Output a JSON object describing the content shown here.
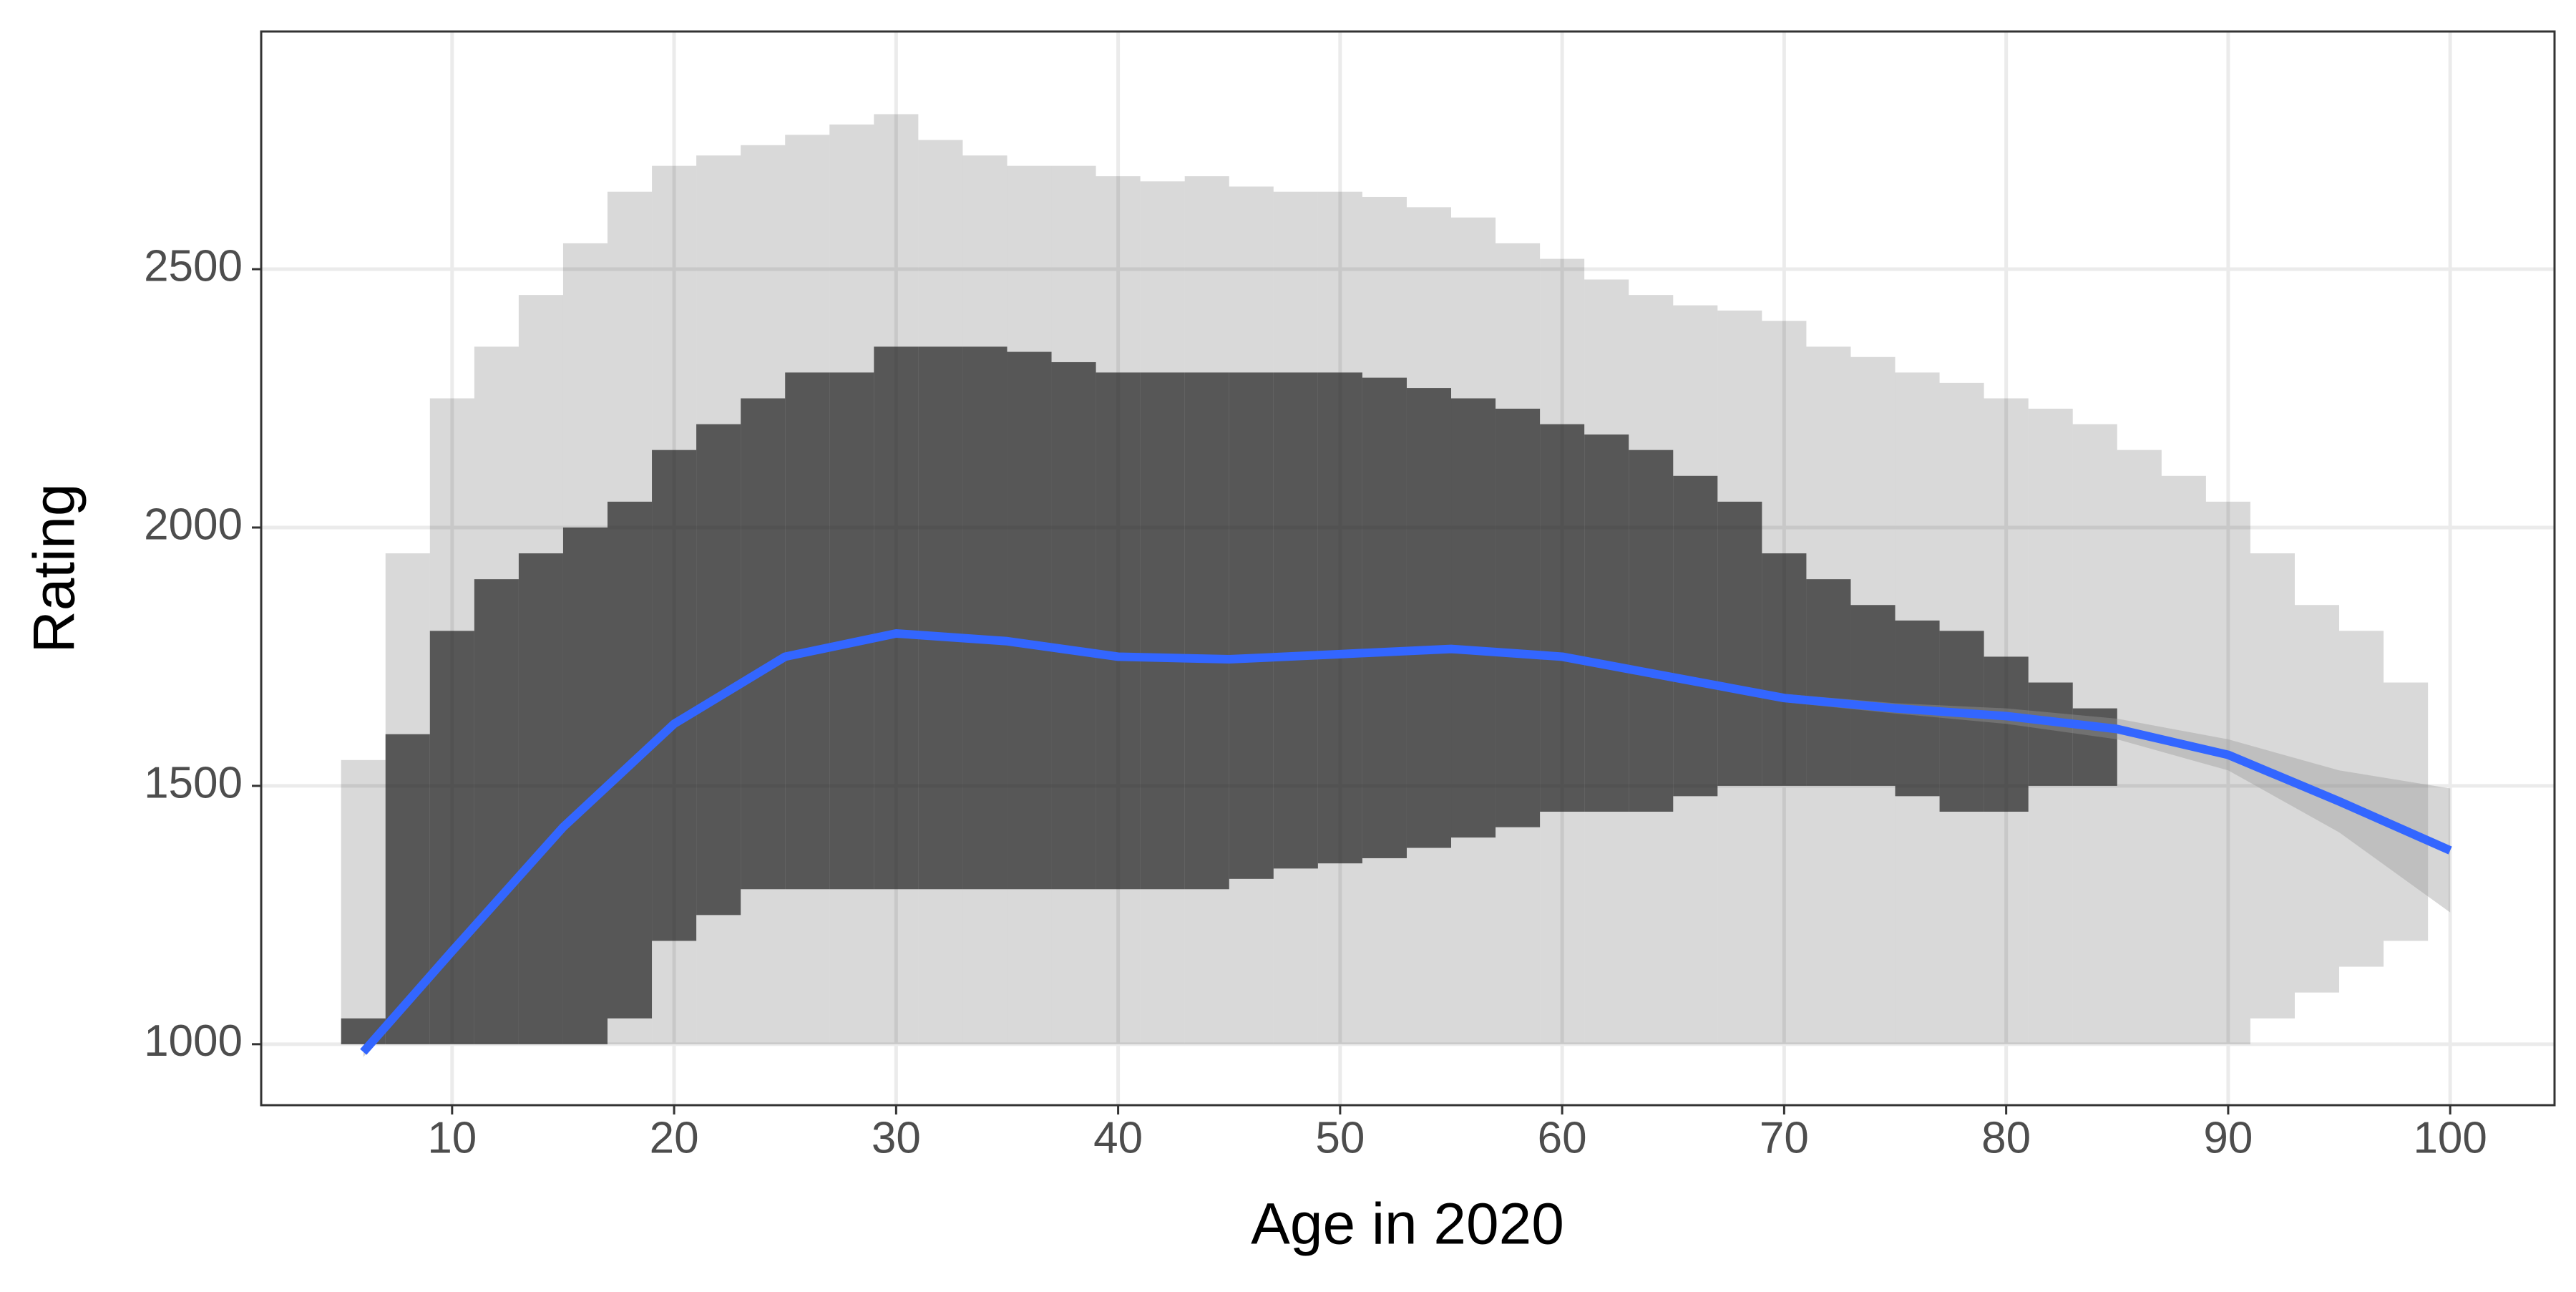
{
  "chart_data": {
    "type": "scatter",
    "xlabel": "Age in 2020",
    "ylabel": "Rating",
    "xlim": [
      1.4,
      104.7
    ],
    "ylim": [
      882,
      2960
    ],
    "xticks": [
      10,
      20,
      30,
      40,
      50,
      60,
      70,
      80,
      90,
      100
    ],
    "yticks": [
      1000,
      1500,
      2000,
      2500
    ],
    "grid": true,
    "points": {
      "color": "#2b2b2b",
      "x": [
        6,
        8,
        10,
        12,
        14,
        16,
        18,
        20,
        22,
        24,
        26,
        28,
        30,
        32,
        34,
        36,
        38,
        40,
        42,
        44,
        46,
        48,
        50,
        52,
        54,
        56,
        58,
        60,
        62,
        64,
        66,
        68,
        70,
        72,
        74,
        76,
        78,
        80,
        82,
        84,
        86,
        88,
        90,
        92,
        94,
        96,
        98
      ],
      "outer_low": [
        1000,
        1000,
        1000,
        1000,
        1000,
        1000,
        1000,
        1000,
        1000,
        1000,
        1000,
        1000,
        1000,
        1000,
        1000,
        1000,
        1000,
        1000,
        1000,
        1000,
        1000,
        1000,
        1000,
        1000,
        1000,
        1000,
        1000,
        1000,
        1000,
        1000,
        1000,
        1000,
        1000,
        1000,
        1000,
        1000,
        1000,
        1000,
        1000,
        1000,
        1000,
        1000,
        1000,
        1050,
        1100,
        1150,
        1200
      ],
      "outer_high": [
        1550,
        1950,
        2250,
        2350,
        2450,
        2550,
        2650,
        2700,
        2720,
        2740,
        2760,
        2780,
        2800,
        2750,
        2720,
        2700,
        2700,
        2680,
        2670,
        2680,
        2660,
        2650,
        2650,
        2640,
        2620,
        2600,
        2550,
        2520,
        2480,
        2450,
        2430,
        2420,
        2400,
        2350,
        2330,
        2300,
        2280,
        2250,
        2230,
        2200,
        2150,
        2100,
        2050,
        1950,
        1850,
        1800,
        1700
      ],
      "core_low": [
        1000,
        1000,
        1000,
        1000,
        1000,
        1000,
        1050,
        1200,
        1250,
        1300,
        1300,
        1300,
        1300,
        1300,
        1300,
        1300,
        1300,
        1300,
        1300,
        1300,
        1320,
        1340,
        1350,
        1360,
        1380,
        1400,
        1420,
        1450,
        1450,
        1450,
        1480,
        1500,
        1500,
        1500,
        1500,
        1480,
        1450,
        1450,
        1500,
        1500,
        null,
        null,
        null,
        null,
        null,
        null,
        null
      ],
      "core_high": [
        1050,
        1600,
        1800,
        1900,
        1950,
        2000,
        2050,
        2150,
        2200,
        2250,
        2300,
        2300,
        2350,
        2350,
        2350,
        2340,
        2320,
        2300,
        2300,
        2300,
        2300,
        2300,
        2300,
        2290,
        2270,
        2250,
        2230,
        2200,
        2180,
        2150,
        2100,
        2050,
        1950,
        1900,
        1850,
        1820,
        1800,
        1750,
        1700,
        1650,
        null,
        null,
        null,
        null,
        null,
        null,
        null
      ]
    },
    "smooth": {
      "color": "#3366ff",
      "band_color": "#999999",
      "x": [
        6,
        10,
        15,
        20,
        25,
        30,
        35,
        40,
        45,
        50,
        55,
        60,
        65,
        70,
        75,
        80,
        85,
        90,
        95,
        100
      ],
      "y": [
        985,
        1180,
        1420,
        1620,
        1750,
        1795,
        1780,
        1750,
        1745,
        1755,
        1765,
        1750,
        1710,
        1670,
        1650,
        1635,
        1610,
        1560,
        1470,
        1375
      ],
      "lower": [
        975,
        1172,
        1413,
        1614,
        1745,
        1790,
        1775,
        1745,
        1740,
        1750,
        1760,
        1744,
        1703,
        1662,
        1640,
        1620,
        1590,
        1530,
        1410,
        1255
      ],
      "upper": [
        995,
        1188,
        1427,
        1626,
        1755,
        1800,
        1785,
        1755,
        1750,
        1760,
        1770,
        1756,
        1717,
        1678,
        1660,
        1650,
        1630,
        1590,
        1530,
        1495
      ]
    }
  }
}
